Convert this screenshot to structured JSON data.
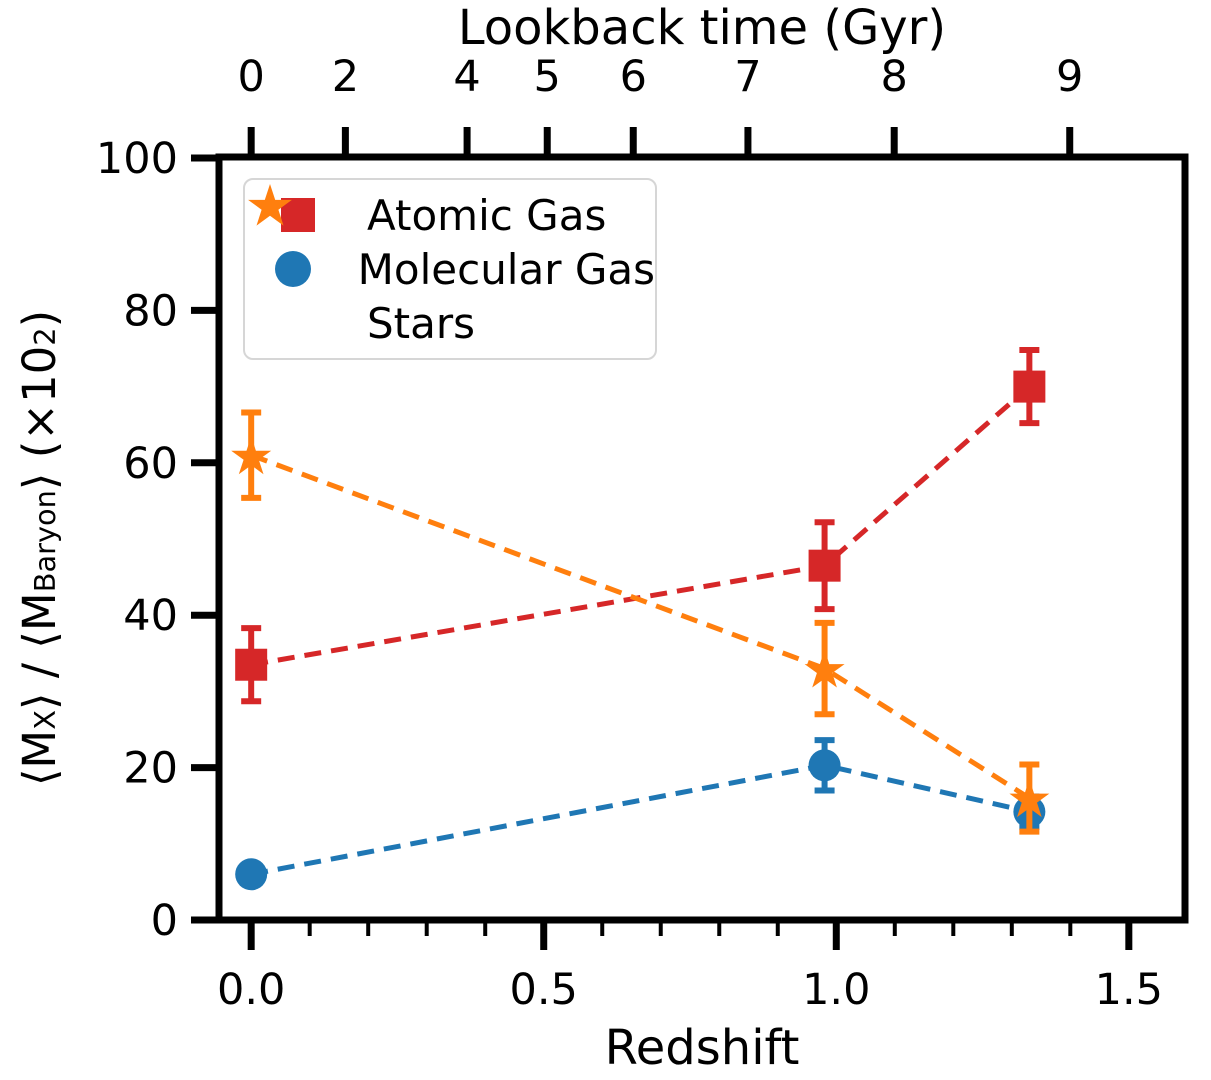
{
  "chart_data": {
    "type": "scatter",
    "title": "",
    "xlabel": "Redshift",
    "xlabel_top": "Lookback time (Gyr)",
    "ylabel": "⟨M_X⟩ / ⟨M_Baryon⟩ (×10²)",
    "ylabel_parts": {
      "p1": "⟨M",
      "sub1": "X",
      "p2": "⟩ / ⟨M",
      "sub2": "Baryon",
      "p3": "⟩ (×10",
      "sup1": "2",
      "p4": ")"
    },
    "xlim": [
      -0.055,
      1.596
    ],
    "ylim": [
      0,
      100
    ],
    "grid": false,
    "legend": {
      "position": "upper left"
    },
    "axes": {
      "axis_color": "#000000",
      "x_major_ticks": {
        "values": [
          0.0,
          0.5,
          1.0,
          1.5
        ],
        "labels": [
          "0.0",
          "0.5",
          "1.0",
          "1.5"
        ]
      },
      "x_minor_tick_values": [
        0.1,
        0.2,
        0.3,
        0.4,
        0.6,
        0.7,
        0.8,
        0.9,
        1.1,
        1.2,
        1.3,
        1.4
      ],
      "y_major_ticks": {
        "values": [
          0,
          20,
          40,
          60,
          80,
          100
        ],
        "labels": [
          "0",
          "20",
          "40",
          "60",
          "80",
          "100"
        ]
      },
      "top_axis_ticks": {
        "labels": [
          "0",
          "2",
          "4",
          "5",
          "6",
          "7",
          "8",
          "9"
        ],
        "values_gyr": [
          0,
          2,
          4,
          5,
          6,
          7,
          8,
          9
        ],
        "redshift_positions": [
          0.0,
          0.161,
          0.369,
          0.506,
          0.653,
          0.849,
          1.099,
          1.399
        ]
      }
    },
    "series": [
      {
        "name": "Atomic Gas",
        "marker": "square",
        "color": "#d62728",
        "line_style": "dashed",
        "x": [
          0.0,
          0.98,
          1.33
        ],
        "y": [
          33.5,
          46.5,
          70.0
        ],
        "yerr": [
          4.8,
          5.7,
          4.8
        ]
      },
      {
        "name": "Molecular Gas",
        "marker": "circle",
        "color": "#1f77b4",
        "line_style": "dashed",
        "x": [
          0.0,
          0.98,
          1.33
        ],
        "y": [
          6.0,
          20.3,
          14.2
        ],
        "yerr": [
          1.0,
          3.3,
          2.0
        ]
      },
      {
        "name": "Stars",
        "marker": "star",
        "color": "#ff7f0e",
        "line_style": "dashed",
        "x": [
          0.0,
          0.98,
          1.33
        ],
        "y": [
          61.0,
          33.0,
          16.0
        ],
        "yerr": [
          5.6,
          6.0,
          4.4
        ]
      }
    ]
  }
}
